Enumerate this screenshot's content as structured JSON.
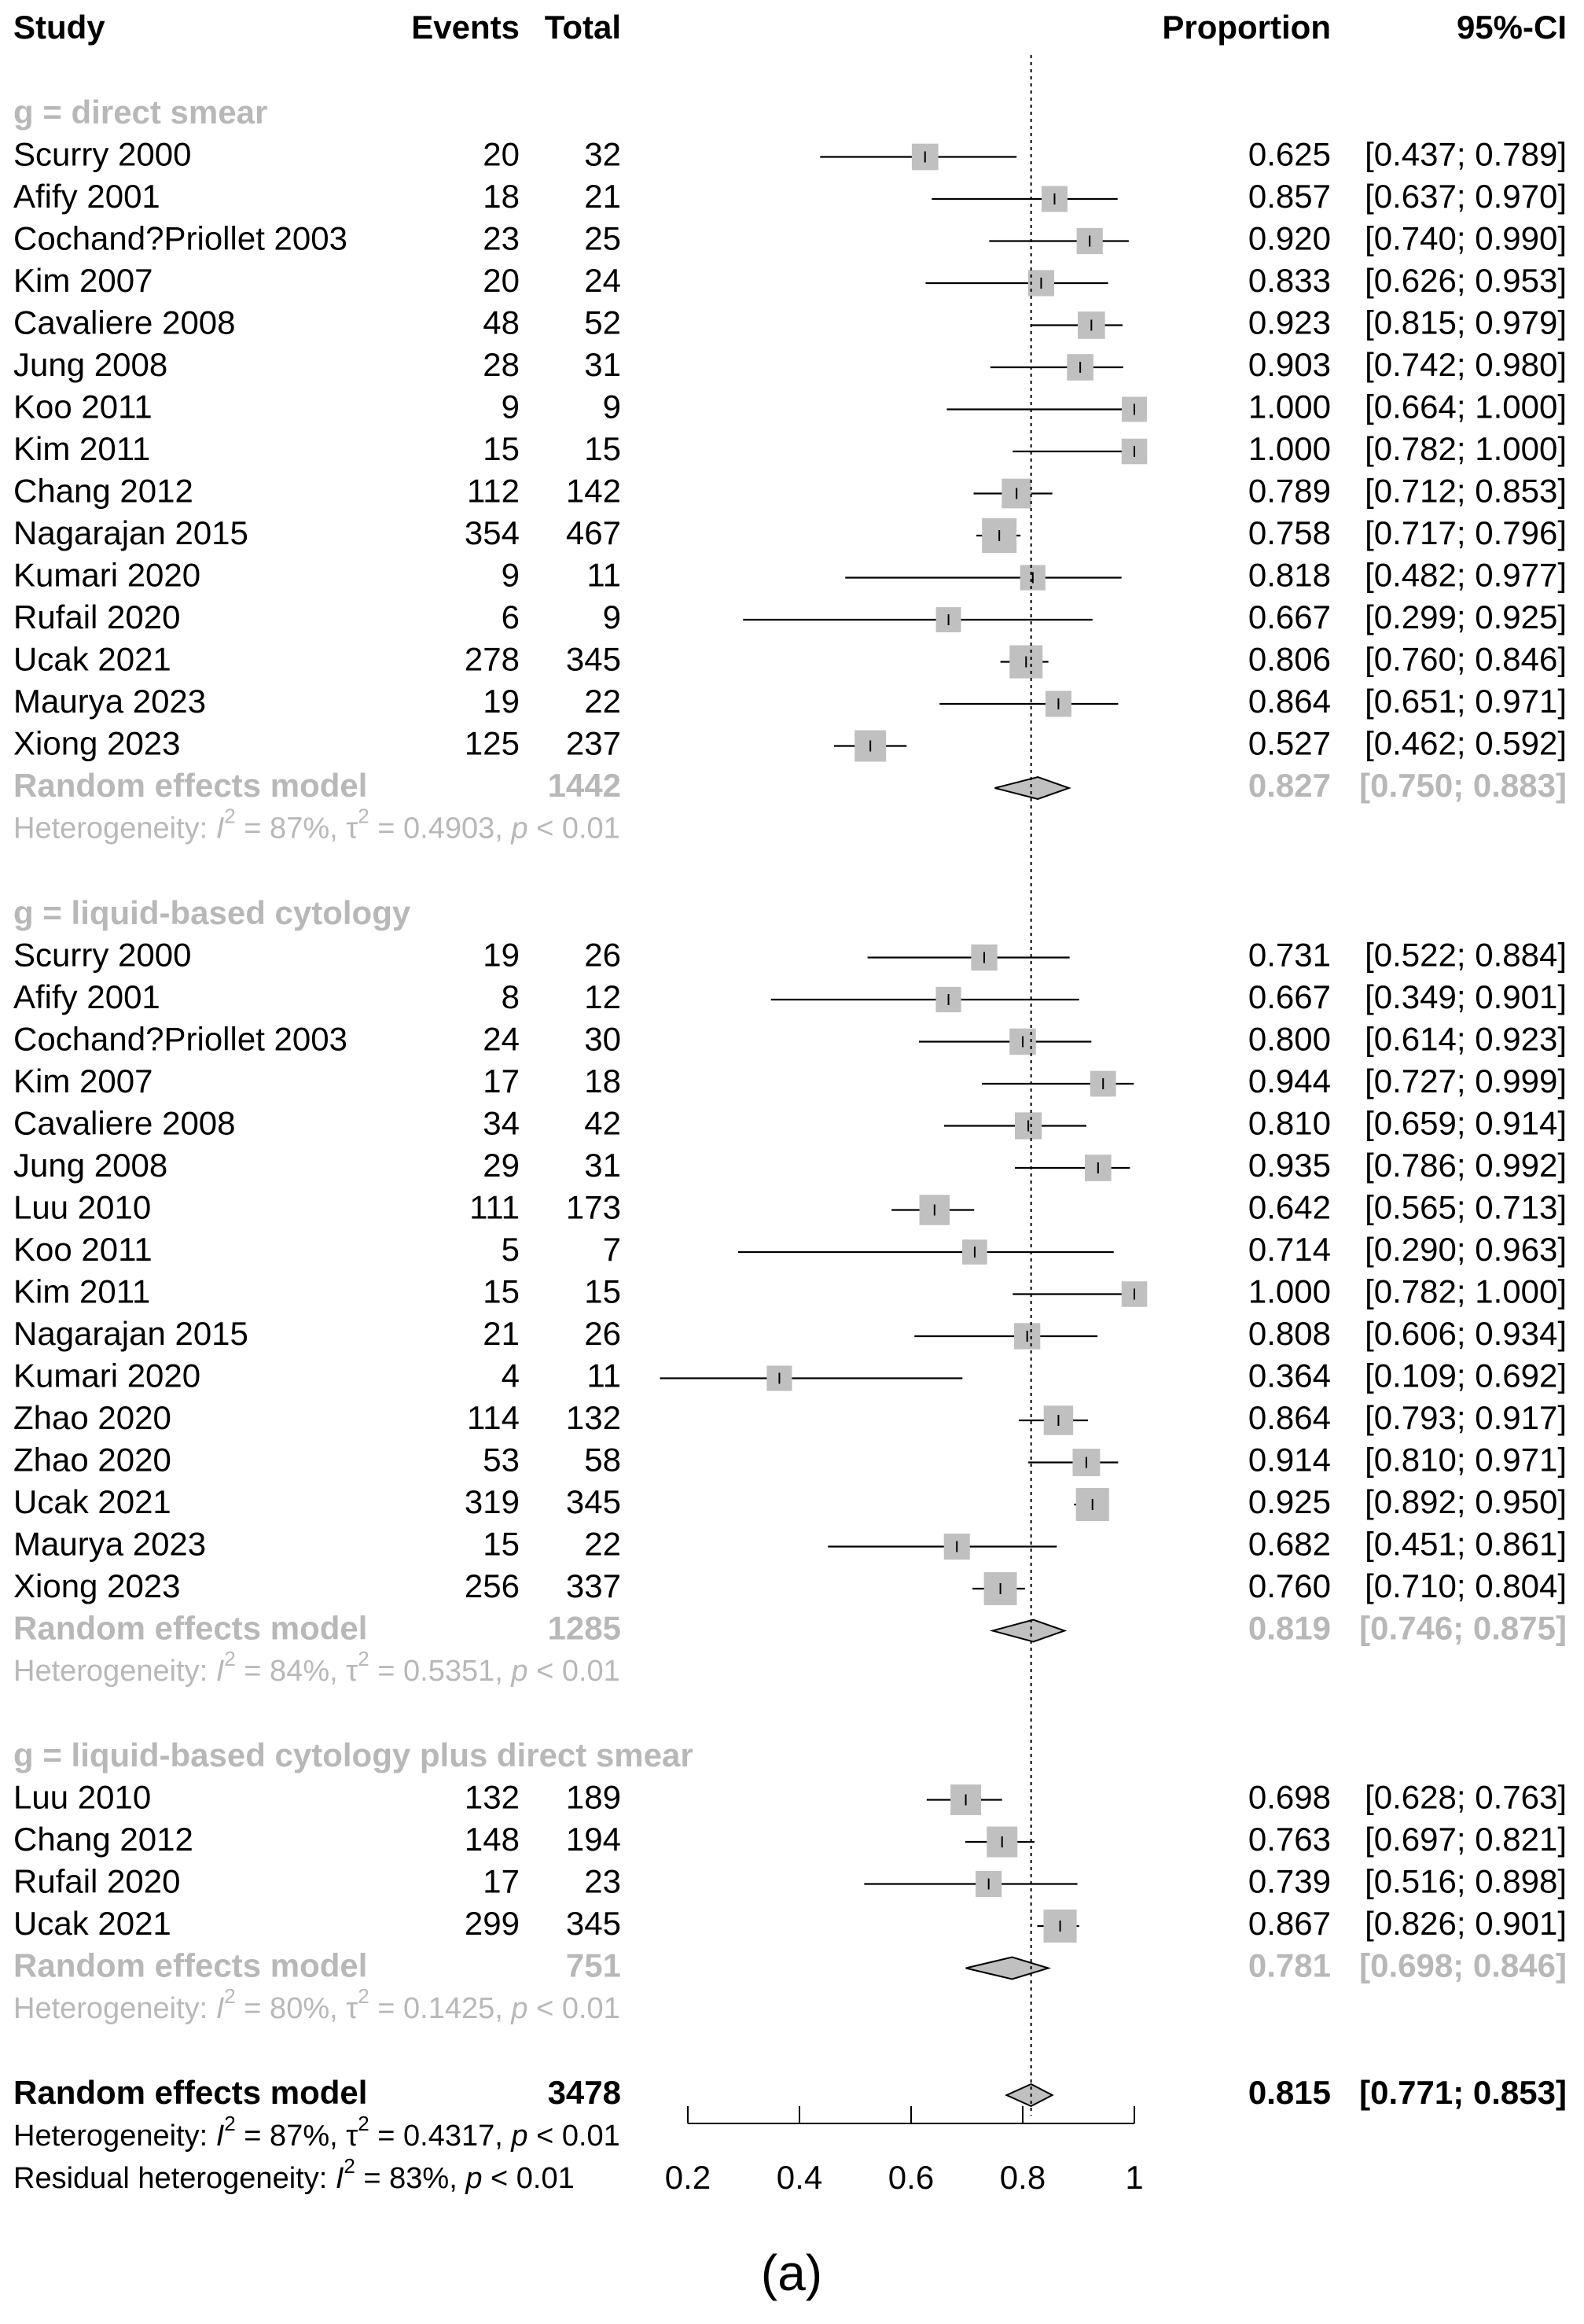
{
  "chart_data": {
    "type": "forest",
    "header": {
      "study": "Study",
      "events": "Events",
      "total": "Total",
      "proportion": "Proportion",
      "ci": "95%-CI"
    },
    "xaxis": {
      "ticks": [
        "0.2",
        "0.4",
        "0.6",
        "0.8",
        "1"
      ],
      "range": [
        0.2,
        1.0
      ],
      "reference_line": 0.815
    },
    "colors": {
      "ink": "#000000",
      "subgroup_gray": "#b8b8b8",
      "box_fill": "#c0c0c0"
    },
    "groups": [
      {
        "label": "g = direct smear",
        "studies": [
          {
            "study": "Scurry 2000",
            "events": "20",
            "total": "32",
            "prop": 0.625,
            "lo": 0.437,
            "hi": 0.789,
            "prop_text": "0.625",
            "ci_text": "[0.437; 0.789]"
          },
          {
            "study": "Afify 2001",
            "events": "18",
            "total": "21",
            "prop": 0.857,
            "lo": 0.637,
            "hi": 0.97,
            "prop_text": "0.857",
            "ci_text": "[0.637; 0.970]"
          },
          {
            "study": "Cochand?Priollet 2003",
            "events": "23",
            "total": "25",
            "prop": 0.92,
            "lo": 0.74,
            "hi": 0.99,
            "prop_text": "0.920",
            "ci_text": "[0.740; 0.990]"
          },
          {
            "study": "Kim 2007",
            "events": "20",
            "total": "24",
            "prop": 0.833,
            "lo": 0.626,
            "hi": 0.953,
            "prop_text": "0.833",
            "ci_text": "[0.626; 0.953]"
          },
          {
            "study": "Cavaliere 2008",
            "events": "48",
            "total": "52",
            "prop": 0.923,
            "lo": 0.815,
            "hi": 0.979,
            "prop_text": "0.923",
            "ci_text": "[0.815; 0.979]"
          },
          {
            "study": "Jung 2008",
            "events": "28",
            "total": "31",
            "prop": 0.903,
            "lo": 0.742,
            "hi": 0.98,
            "prop_text": "0.903",
            "ci_text": "[0.742; 0.980]"
          },
          {
            "study": "Koo 2011",
            "events": "9",
            "total": "9",
            "prop": 1.0,
            "lo": 0.664,
            "hi": 1.0,
            "prop_text": "1.000",
            "ci_text": "[0.664; 1.000]"
          },
          {
            "study": "Kim 2011",
            "events": "15",
            "total": "15",
            "prop": 1.0,
            "lo": 0.782,
            "hi": 1.0,
            "prop_text": "1.000",
            "ci_text": "[0.782; 1.000]"
          },
          {
            "study": "Chang 2012",
            "events": "112",
            "total": "142",
            "prop": 0.789,
            "lo": 0.712,
            "hi": 0.853,
            "prop_text": "0.789",
            "ci_text": "[0.712; 0.853]"
          },
          {
            "study": "Nagarajan 2015",
            "events": "354",
            "total": "467",
            "prop": 0.758,
            "lo": 0.717,
            "hi": 0.796,
            "prop_text": "0.758",
            "ci_text": "[0.717; 0.796]"
          },
          {
            "study": "Kumari 2020",
            "events": "9",
            "total": "11",
            "prop": 0.818,
            "lo": 0.482,
            "hi": 0.977,
            "prop_text": "0.818",
            "ci_text": "[0.482; 0.977]"
          },
          {
            "study": "Rufail 2020",
            "events": "6",
            "total": "9",
            "prop": 0.667,
            "lo": 0.299,
            "hi": 0.925,
            "prop_text": "0.667",
            "ci_text": "[0.299; 0.925]"
          },
          {
            "study": "Ucak 2021",
            "events": "278",
            "total": "345",
            "prop": 0.806,
            "lo": 0.76,
            "hi": 0.846,
            "prop_text": "0.806",
            "ci_text": "[0.760; 0.846]"
          },
          {
            "study": "Maurya 2023",
            "events": "19",
            "total": "22",
            "prop": 0.864,
            "lo": 0.651,
            "hi": 0.971,
            "prop_text": "0.864",
            "ci_text": "[0.651; 0.971]"
          },
          {
            "study": "Xiong 2023",
            "events": "125",
            "total": "237",
            "prop": 0.527,
            "lo": 0.462,
            "hi": 0.592,
            "prop_text": "0.527",
            "ci_text": "[0.462; 0.592]"
          }
        ],
        "pooled": {
          "label": "Random effects model",
          "total": "1442",
          "prop": 0.827,
          "lo": 0.75,
          "hi": 0.883,
          "prop_text": "0.827",
          "ci_text": "[0.750; 0.883]"
        },
        "heterogeneity": {
          "i2": "87%",
          "tau2": "0.4903",
          "p": "< 0.01"
        }
      },
      {
        "label": "g = liquid-based cytology",
        "studies": [
          {
            "study": "Scurry 2000",
            "events": "19",
            "total": "26",
            "prop": 0.731,
            "lo": 0.522,
            "hi": 0.884,
            "prop_text": "0.731",
            "ci_text": "[0.522; 0.884]"
          },
          {
            "study": "Afify 2001",
            "events": "8",
            "total": "12",
            "prop": 0.667,
            "lo": 0.349,
            "hi": 0.901,
            "prop_text": "0.667",
            "ci_text": "[0.349; 0.901]"
          },
          {
            "study": "Cochand?Priollet 2003",
            "events": "24",
            "total": "30",
            "prop": 0.8,
            "lo": 0.614,
            "hi": 0.923,
            "prop_text": "0.800",
            "ci_text": "[0.614; 0.923]"
          },
          {
            "study": "Kim 2007",
            "events": "17",
            "total": "18",
            "prop": 0.944,
            "lo": 0.727,
            "hi": 0.999,
            "prop_text": "0.944",
            "ci_text": "[0.727; 0.999]"
          },
          {
            "study": "Cavaliere 2008",
            "events": "34",
            "total": "42",
            "prop": 0.81,
            "lo": 0.659,
            "hi": 0.914,
            "prop_text": "0.810",
            "ci_text": "[0.659; 0.914]"
          },
          {
            "study": "Jung 2008",
            "events": "29",
            "total": "31",
            "prop": 0.935,
            "lo": 0.786,
            "hi": 0.992,
            "prop_text": "0.935",
            "ci_text": "[0.786; 0.992]"
          },
          {
            "study": "Luu 2010",
            "events": "111",
            "total": "173",
            "prop": 0.642,
            "lo": 0.565,
            "hi": 0.713,
            "prop_text": "0.642",
            "ci_text": "[0.565; 0.713]"
          },
          {
            "study": "Koo 2011",
            "events": "5",
            "total": "7",
            "prop": 0.714,
            "lo": 0.29,
            "hi": 0.963,
            "prop_text": "0.714",
            "ci_text": "[0.290; 0.963]"
          },
          {
            "study": "Kim 2011",
            "events": "15",
            "total": "15",
            "prop": 1.0,
            "lo": 0.782,
            "hi": 1.0,
            "prop_text": "1.000",
            "ci_text": "[0.782; 1.000]"
          },
          {
            "study": "Nagarajan 2015",
            "events": "21",
            "total": "26",
            "prop": 0.808,
            "lo": 0.606,
            "hi": 0.934,
            "prop_text": "0.808",
            "ci_text": "[0.606; 0.934]"
          },
          {
            "study": "Kumari 2020",
            "events": "4",
            "total": "11",
            "prop": 0.364,
            "lo": 0.109,
            "hi": 0.692,
            "prop_text": "0.364",
            "ci_text": "[0.109; 0.692]"
          },
          {
            "study": "Zhao 2020",
            "events": "114",
            "total": "132",
            "prop": 0.864,
            "lo": 0.793,
            "hi": 0.917,
            "prop_text": "0.864",
            "ci_text": "[0.793; 0.917]"
          },
          {
            "study": "Zhao 2020",
            "events": "53",
            "total": "58",
            "prop": 0.914,
            "lo": 0.81,
            "hi": 0.971,
            "prop_text": "0.914",
            "ci_text": "[0.810; 0.971]"
          },
          {
            "study": "Ucak 2021",
            "events": "319",
            "total": "345",
            "prop": 0.925,
            "lo": 0.892,
            "hi": 0.95,
            "prop_text": "0.925",
            "ci_text": "[0.892; 0.950]"
          },
          {
            "study": "Maurya 2023",
            "events": "15",
            "total": "22",
            "prop": 0.682,
            "lo": 0.451,
            "hi": 0.861,
            "prop_text": "0.682",
            "ci_text": "[0.451; 0.861]"
          },
          {
            "study": "Xiong 2023",
            "events": "256",
            "total": "337",
            "prop": 0.76,
            "lo": 0.71,
            "hi": 0.804,
            "prop_text": "0.760",
            "ci_text": "[0.710; 0.804]"
          }
        ],
        "pooled": {
          "label": "Random effects model",
          "total": "1285",
          "prop": 0.819,
          "lo": 0.746,
          "hi": 0.875,
          "prop_text": "0.819",
          "ci_text": "[0.746; 0.875]"
        },
        "heterogeneity": {
          "i2": "84%",
          "tau2": "0.5351",
          "p": "< 0.01"
        }
      },
      {
        "label": "g = liquid-based cytology plus direct smear",
        "studies": [
          {
            "study": "Luu 2010",
            "events": "132",
            "total": "189",
            "prop": 0.698,
            "lo": 0.628,
            "hi": 0.763,
            "prop_text": "0.698",
            "ci_text": "[0.628; 0.763]"
          },
          {
            "study": "Chang 2012",
            "events": "148",
            "total": "194",
            "prop": 0.763,
            "lo": 0.697,
            "hi": 0.821,
            "prop_text": "0.763",
            "ci_text": "[0.697; 0.821]"
          },
          {
            "study": "Rufail 2020",
            "events": "17",
            "total": "23",
            "prop": 0.739,
            "lo": 0.516,
            "hi": 0.898,
            "prop_text": "0.739",
            "ci_text": "[0.516; 0.898]"
          },
          {
            "study": "Ucak 2021",
            "events": "299",
            "total": "345",
            "prop": 0.867,
            "lo": 0.826,
            "hi": 0.901,
            "prop_text": "0.867",
            "ci_text": "[0.826; 0.901]"
          }
        ],
        "pooled": {
          "label": "Random effects model",
          "total": "751",
          "prop": 0.781,
          "lo": 0.698,
          "hi": 0.846,
          "prop_text": "0.781",
          "ci_text": "[0.698; 0.846]"
        },
        "heterogeneity": {
          "i2": "80%",
          "tau2": "0.1425",
          "p": "< 0.01"
        }
      }
    ],
    "overall": {
      "label": "Random effects model",
      "total": "3478",
      "prop": 0.815,
      "lo": 0.771,
      "hi": 0.853,
      "prop_text": "0.815",
      "ci_text": "[0.771; 0.853]",
      "heterogeneity": {
        "i2": "87%",
        "tau2": "0.4317",
        "p": "< 0.01"
      },
      "residual_heterogeneity": {
        "i2": "83%",
        "p": "< 0.01"
      }
    },
    "caption": "(a)"
  }
}
